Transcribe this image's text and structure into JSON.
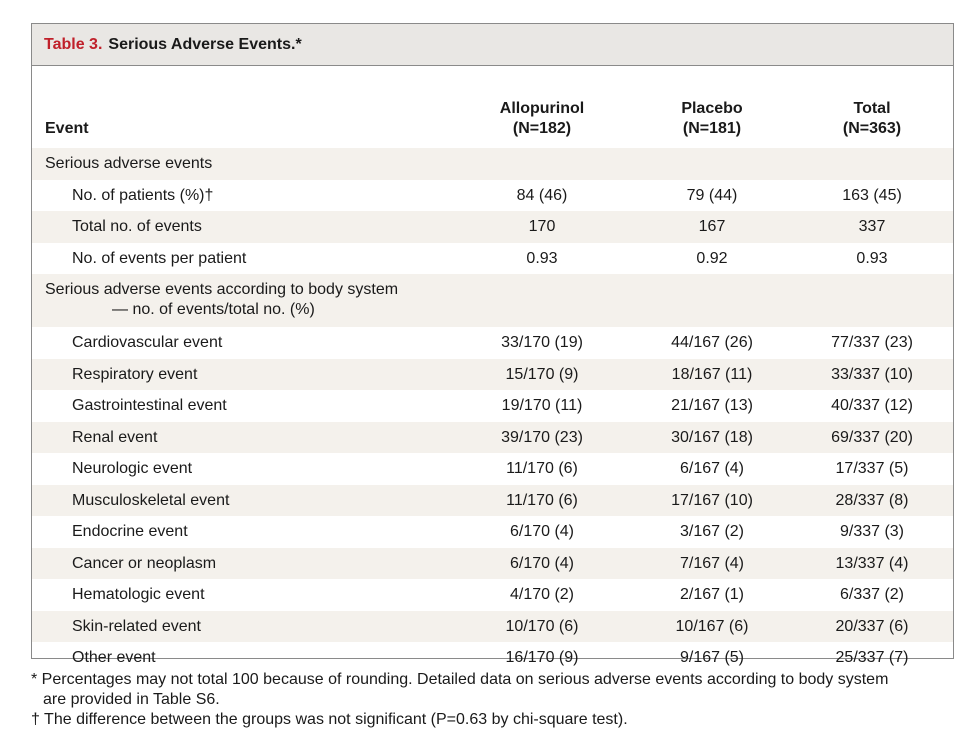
{
  "title": {
    "label": "Table 3.",
    "text": "Serious Adverse Events.*"
  },
  "colors": {
    "title_bg": "#e9e7e4",
    "title_label": "#c0202a",
    "row_shade": "#f4f1ec",
    "border": "#8a8a8a"
  },
  "header": {
    "event": "Event",
    "columns": [
      {
        "name": "Allopurinol",
        "n": "(N=182)"
      },
      {
        "name": "Placebo",
        "n": "(N=181)"
      },
      {
        "name": "Total",
        "n": "(N=363)"
      }
    ]
  },
  "rows": [
    {
      "label": "Serious adverse events",
      "values": [
        "",
        "",
        ""
      ]
    },
    {
      "label": "No. of patients (%)†",
      "values": [
        "84 (46)",
        "79 (44)",
        "163 (45)"
      ]
    },
    {
      "label": "Total no. of events",
      "values": [
        "170",
        "167",
        "337"
      ]
    },
    {
      "label": "No. of events per patient",
      "values": [
        "0.93",
        "0.92",
        "0.93"
      ]
    },
    {
      "label": "Serious adverse events according to body system",
      "label2": "— no. of events/total no. (%)",
      "values": [
        "",
        "",
        ""
      ]
    },
    {
      "label": "Cardiovascular event",
      "values": [
        "33/170 (19)",
        "44/167 (26)",
        "77/337 (23)"
      ]
    },
    {
      "label": "Respiratory event",
      "values": [
        "15/170 (9)",
        "18/167 (11)",
        "33/337 (10)"
      ]
    },
    {
      "label": "Gastrointestinal event",
      "values": [
        "19/170 (11)",
        "21/167 (13)",
        "40/337 (12)"
      ]
    },
    {
      "label": "Renal event",
      "values": [
        "39/170 (23)",
        "30/167 (18)",
        "69/337 (20)"
      ]
    },
    {
      "label": "Neurologic event",
      "values": [
        "11/170 (6)",
        "6/167 (4)",
        "17/337 (5)"
      ]
    },
    {
      "label": "Musculoskeletal event",
      "values": [
        "11/170 (6)",
        "17/167 (10)",
        "28/337 (8)"
      ]
    },
    {
      "label": "Endocrine event",
      "values": [
        "6/170 (4)",
        "3/167 (2)",
        "9/337 (3)"
      ]
    },
    {
      "label": "Cancer or neoplasm",
      "values": [
        "6/170 (4)",
        "7/167 (4)",
        "13/337 (4)"
      ]
    },
    {
      "label": "Hematologic event",
      "values": [
        "4/170 (2)",
        "2/167 (1)",
        "6/337 (2)"
      ]
    },
    {
      "label": "Skin-related event",
      "values": [
        "10/170 (6)",
        "10/167 (6)",
        "20/337 (6)"
      ]
    },
    {
      "label": "Other event",
      "values": [
        "16/170 (9)",
        "9/167 (5)",
        "25/337 (7)"
      ]
    }
  ],
  "footnotes": {
    "star_line1": "* Percentages may not total 100 because of rounding. Detailed data on serious adverse events according to body system",
    "star_line2": "are provided in Table S6.",
    "dagger": "† The difference between the groups was not significant (P=0.63 by chi-square test)."
  }
}
